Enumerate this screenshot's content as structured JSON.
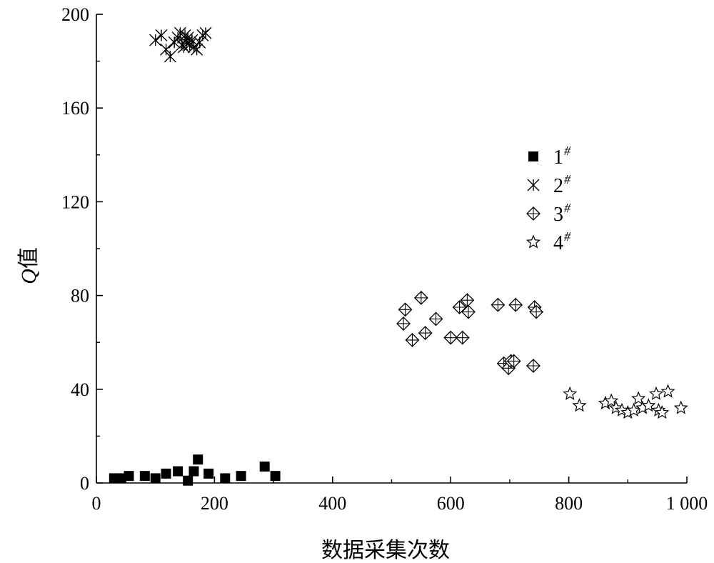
{
  "chart_data": {
    "type": "scatter",
    "xlabel": "数据采集次数",
    "ylabel": {
      "symbol": "Q",
      "suffix": "值"
    },
    "xlim": [
      0,
      1000
    ],
    "ylim": [
      0,
      200
    ],
    "x_ticks": [
      0,
      200,
      400,
      600,
      800,
      1000
    ],
    "x_tick_labels": [
      "0",
      "200",
      "400",
      "600",
      "800",
      "1 000"
    ],
    "y_ticks": [
      0,
      40,
      80,
      120,
      160,
      200
    ],
    "y_tick_labels": [
      "0",
      "40",
      "80",
      "120",
      "160",
      "200"
    ],
    "grid": false,
    "legend_position": "right",
    "series": [
      {
        "name": "1#",
        "label_main": "1",
        "label_sup": "#",
        "marker": "filled-square",
        "x": [
          30,
          42,
          55,
          82,
          100,
          118,
          138,
          155,
          165,
          172,
          190,
          218,
          245,
          285,
          303
        ],
        "y": [
          2,
          2,
          3,
          3,
          2,
          4,
          5,
          1,
          5,
          10,
          4,
          2,
          3,
          7,
          3
        ]
      },
      {
        "name": "2#",
        "label_main": "2",
        "label_sup": "#",
        "marker": "asterisk",
        "x": [
          100,
          110,
          118,
          125,
          132,
          138,
          142,
          145,
          148,
          150,
          152,
          155,
          158,
          162,
          165,
          170,
          175,
          180,
          185
        ],
        "y": [
          189,
          191,
          185,
          182,
          188,
          190,
          192,
          187,
          186,
          191,
          188,
          190,
          187,
          189,
          186,
          185,
          188,
          191,
          192
        ]
      },
      {
        "name": "3#",
        "label_main": "3",
        "label_sup": "#",
        "marker": "diamond-plus",
        "x": [
          520,
          523,
          535,
          550,
          557,
          575,
          600,
          615,
          620,
          628,
          630,
          680,
          690,
          698,
          702,
          707,
          710,
          740,
          742,
          745
        ],
        "y": [
          68,
          74,
          61,
          79,
          64,
          70,
          62,
          75,
          62,
          78,
          73,
          76,
          51,
          49,
          52,
          52,
          76,
          50,
          75,
          73
        ]
      },
      {
        "name": "4#",
        "label_main": "4",
        "label_sup": "#",
        "marker": "star",
        "x": [
          802,
          818,
          862,
          872,
          880,
          890,
          900,
          910,
          918,
          925,
          935,
          948,
          952,
          958,
          968,
          990
        ],
        "y": [
          38,
          33,
          34,
          35,
          32,
          31,
          30,
          31,
          36,
          32,
          33,
          38,
          31,
          30,
          39,
          32
        ]
      }
    ]
  }
}
